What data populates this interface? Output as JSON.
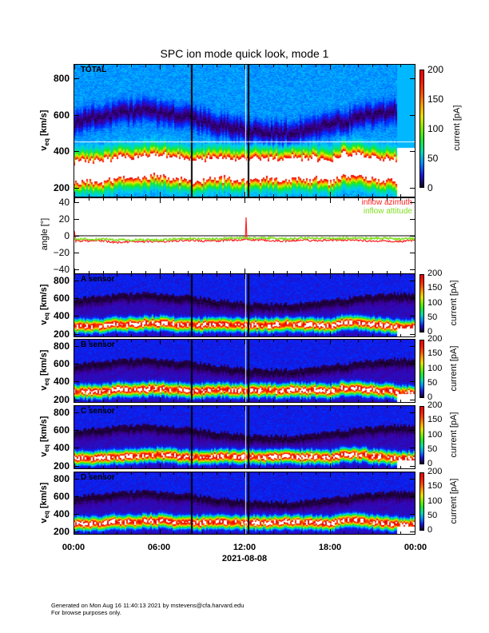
{
  "title": "SPC ion mode quick look, mode 1",
  "footer": {
    "line1": "Generated on Mon Aug 16 11:40:13 2021 by mstevens@cfa.harvard.edu",
    "line2": "For browse purposes only."
  },
  "x_axis": {
    "tick_labels": [
      "00:00",
      "06:00",
      "12:00",
      "18:00",
      "00:00"
    ],
    "date": "2021-08-08"
  },
  "colors": {
    "azimuth": "#ff2020",
    "attitude": "#80e020"
  },
  "chart_data": [
    {
      "type": "heatmap",
      "panel": "TOTAL",
      "label": "TOTAL",
      "ylabel": "v",
      "ylabel_sub": "eq",
      "ylabel_unit": "[km/s]",
      "yticks": [
        200,
        400,
        600,
        800
      ],
      "ylim": [
        150,
        875
      ],
      "colorbar_label": "current [pA]",
      "colorbar_ticks": [
        0,
        50,
        100,
        150,
        200
      ],
      "clim": [
        0,
        200
      ],
      "hours": [
        0,
        1,
        2,
        3,
        4,
        5,
        6,
        7,
        8,
        9,
        10,
        11,
        12,
        13,
        14,
        15,
        16,
        17,
        18,
        19,
        20,
        21,
        22,
        23,
        24
      ],
      "peak_velocity_kms": [
        290,
        290,
        290,
        310,
        310,
        320,
        325,
        310,
        300,
        300,
        310,
        305,
        300,
        305,
        300,
        310,
        300,
        305,
        290,
        330,
        330,
        310,
        300,
        280,
        280
      ]
    },
    {
      "type": "line",
      "panel": "angle",
      "ylabel": "angle [°]",
      "yticks": [
        -40,
        -20,
        0,
        20,
        40
      ],
      "ylim": [
        -45,
        45
      ],
      "hours": [
        0,
        1,
        2,
        3,
        4,
        5,
        6,
        7,
        8,
        9,
        10,
        11,
        12,
        13,
        14,
        15,
        16,
        17,
        18,
        19,
        20,
        21,
        22,
        23,
        24
      ],
      "series": [
        {
          "name": "inflow azimuth",
          "values": [
            -6,
            -6,
            -6,
            -8,
            -7,
            -7,
            -7,
            -6,
            -5,
            -6,
            -6,
            -5,
            -5,
            -5,
            -6,
            -6,
            -5,
            -6,
            -5,
            -5,
            -6,
            -6,
            -6,
            -7,
            -5
          ],
          "spike": {
            "hour": 12.1,
            "value": 22
          }
        },
        {
          "name": "inflow attitude",
          "values": [
            -4,
            -4,
            -4,
            -5,
            -5,
            -5,
            -5,
            -4,
            -3,
            -4,
            -4,
            -3,
            -3,
            -3,
            -3,
            -4,
            -3,
            -3,
            -3,
            -3,
            -3,
            -3,
            -3,
            -4,
            -3
          ]
        }
      ]
    },
    {
      "type": "heatmap",
      "panel": "A",
      "label": "A sensor",
      "ylabel": "v",
      "ylabel_sub": "eq",
      "ylabel_unit": "[km/s]",
      "yticks": [
        200,
        400,
        600,
        800
      ],
      "ylim": [
        170,
        870
      ],
      "colorbar_label": "current [pA]",
      "colorbar_ticks": [
        0,
        50,
        100,
        150,
        200
      ],
      "clim": [
        0,
        200
      ]
    },
    {
      "type": "heatmap",
      "panel": "B",
      "label": "B sensor",
      "ylabel": "v",
      "ylabel_sub": "eq",
      "ylabel_unit": "[km/s]",
      "yticks": [
        200,
        400,
        600,
        800
      ],
      "ylim": [
        170,
        870
      ],
      "colorbar_label": "current [pA]",
      "colorbar_ticks": [
        0,
        50,
        100,
        150,
        200
      ],
      "clim": [
        0,
        200
      ]
    },
    {
      "type": "heatmap",
      "panel": "C",
      "label": "C sensor",
      "ylabel": "v",
      "ylabel_sub": "eq",
      "ylabel_unit": "[km/s]",
      "yticks": [
        200,
        400,
        600,
        800
      ],
      "ylim": [
        170,
        870
      ],
      "colorbar_label": "current [pA]",
      "colorbar_ticks": [
        0,
        50,
        100,
        150,
        200
      ],
      "clim": [
        0,
        200
      ]
    },
    {
      "type": "heatmap",
      "panel": "D",
      "label": "D sensor",
      "ylabel": "v",
      "ylabel_sub": "eq",
      "ylabel_unit": "[km/s]",
      "yticks": [
        200,
        400,
        600,
        800
      ],
      "ylim": [
        170,
        870
      ],
      "colorbar_label": "current [pA]",
      "colorbar_ticks": [
        0,
        50,
        100,
        150,
        200
      ],
      "clim": [
        0,
        200
      ]
    }
  ]
}
